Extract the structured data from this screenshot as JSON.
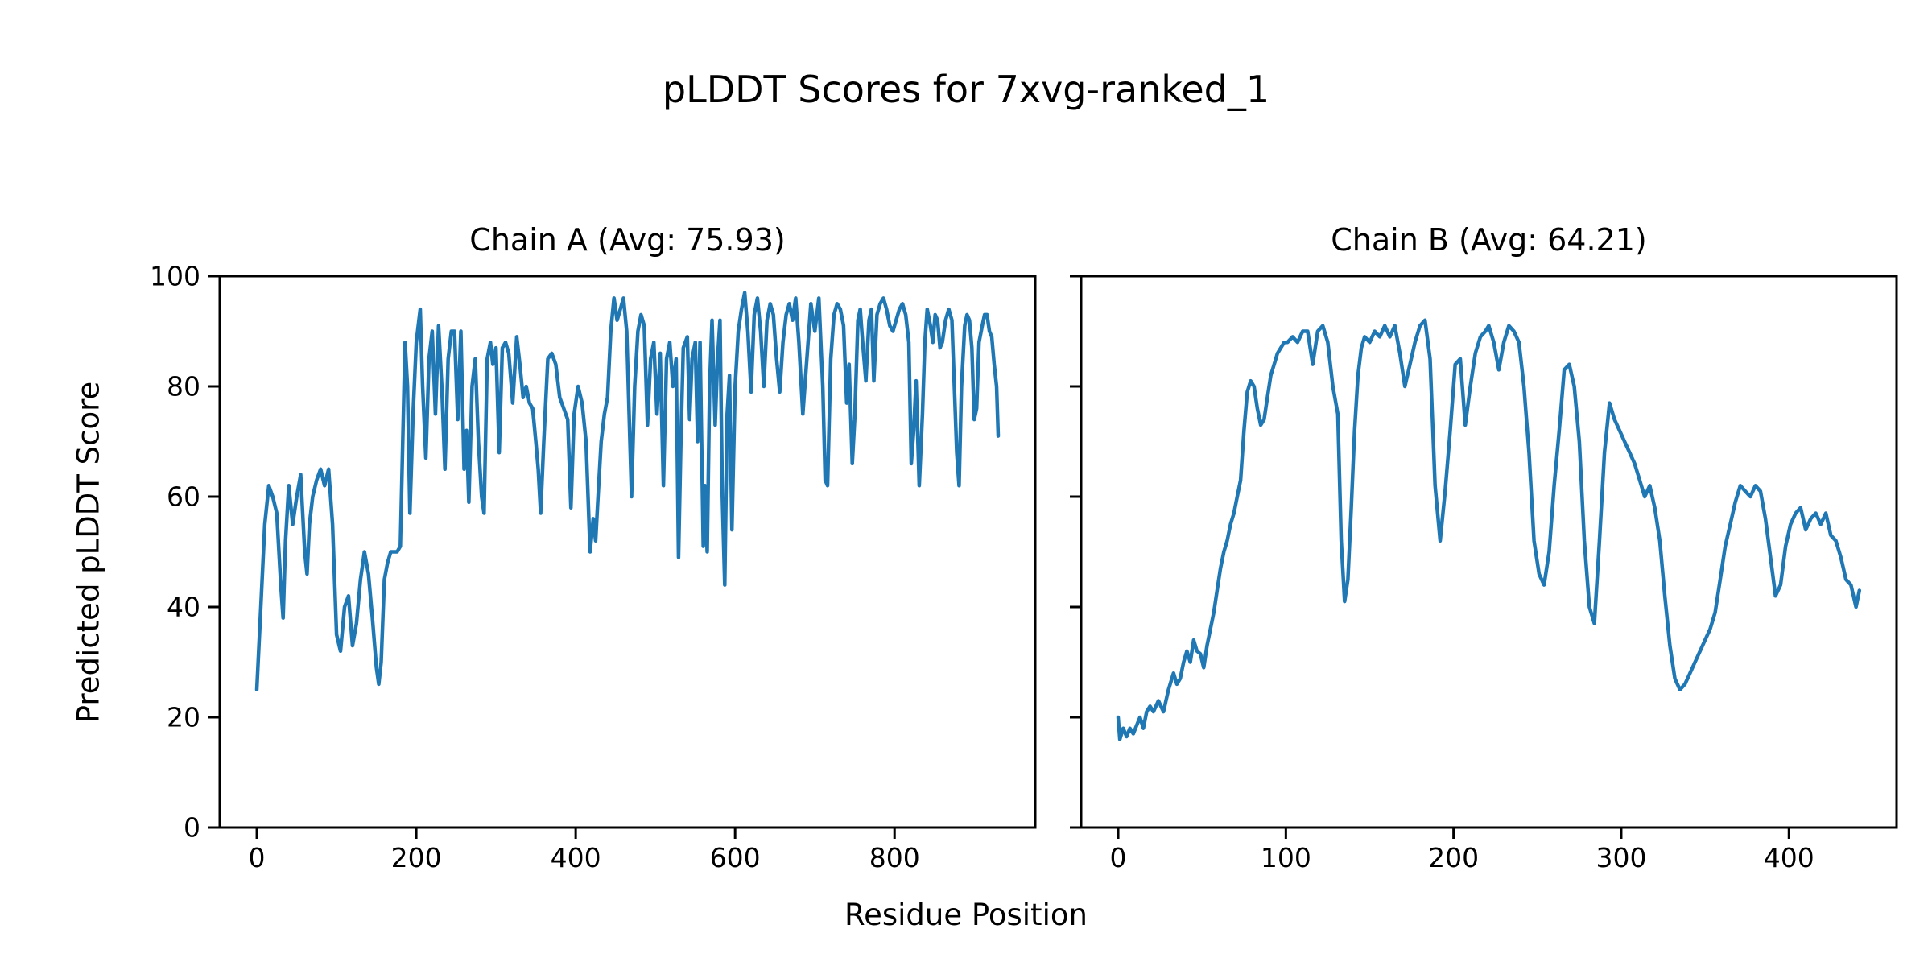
{
  "figure": {
    "suptitle": "pLDDT Scores for 7xvg-ranked_1",
    "xlabel": "Residue Position",
    "ylabel": "Predicted pLDDT Score",
    "line_color": "#1f77b4",
    "axis_color": "#000000",
    "background_color": "#ffffff"
  },
  "chart_data": [
    {
      "type": "line",
      "title": "Chain A (Avg: 75.93)",
      "average_plddt": 75.93,
      "xticks": [
        0,
        200,
        400,
        600,
        800
      ],
      "yticks": [
        0,
        20,
        40,
        60,
        80,
        100
      ],
      "show_ytick_labels": true,
      "xlim": [
        -46.5,
        976.5
      ],
      "ylim": [
        0,
        100
      ],
      "grid": false,
      "legend": false,
      "x": [
        0,
        5,
        10,
        15,
        20,
        25,
        30,
        33,
        36,
        40,
        45,
        50,
        55,
        60,
        63,
        66,
        70,
        75,
        80,
        85,
        90,
        95,
        100,
        105,
        110,
        115,
        120,
        125,
        130,
        135,
        140,
        145,
        150,
        153,
        156,
        160,
        164,
        168,
        172,
        176,
        180,
        183,
        186,
        189,
        192,
        196,
        200,
        205,
        208,
        212,
        216,
        220,
        224,
        228,
        232,
        236,
        240,
        244,
        248,
        252,
        256,
        260,
        263,
        266,
        270,
        274,
        278,
        282,
        285,
        289,
        293,
        296,
        300,
        304,
        308,
        312,
        316,
        321,
        326,
        330,
        334,
        338,
        342,
        346,
        350,
        353,
        356,
        360,
        365,
        370,
        375,
        380,
        385,
        390,
        394,
        398,
        403,
        408,
        413,
        418,
        422,
        425,
        428,
        432,
        436,
        440,
        444,
        448,
        452,
        456,
        460,
        464,
        467,
        470,
        474,
        478,
        482,
        486,
        490,
        494,
        498,
        502,
        506,
        510,
        514,
        518,
        522,
        526,
        529,
        532,
        535,
        540,
        543,
        546,
        550,
        553,
        556,
        560,
        562,
        565,
        568,
        571,
        575,
        578,
        581,
        584,
        587,
        590,
        593,
        596,
        600,
        604,
        608,
        612,
        616,
        620,
        624,
        628,
        632,
        636,
        640,
        644,
        648,
        652,
        656,
        660,
        664,
        668,
        672,
        676,
        680,
        685,
        690,
        695,
        700,
        705,
        710,
        713,
        716,
        720,
        724,
        728,
        732,
        736,
        740,
        743,
        747,
        750,
        754,
        757,
        760,
        764,
        768,
        771,
        774,
        778,
        782,
        786,
        790,
        794,
        798,
        802,
        806,
        810,
        814,
        818,
        821,
        824,
        827,
        831,
        835,
        838,
        841,
        845,
        848,
        851,
        854,
        857,
        860,
        864,
        868,
        872,
        875,
        878,
        881,
        884,
        888,
        891,
        894,
        897,
        900,
        903,
        906,
        910,
        913,
        916,
        919,
        922,
        925,
        928,
        930
      ],
      "y": [
        25,
        40,
        55,
        62,
        60,
        57,
        44,
        38,
        52,
        62,
        55,
        60,
        64,
        50,
        46,
        55,
        60,
        63,
        65,
        62,
        65,
        55,
        35,
        32,
        40,
        42,
        33,
        37,
        45,
        50,
        46,
        38,
        29,
        26,
        30,
        45,
        48,
        50,
        50,
        50,
        51,
        70,
        88,
        80,
        57,
        75,
        88,
        94,
        80,
        67,
        85,
        90,
        75,
        91,
        80,
        65,
        85,
        90,
        90,
        74,
        90,
        65,
        72,
        59,
        80,
        85,
        70,
        60,
        57,
        85,
        88,
        84,
        87,
        68,
        87,
        88,
        86,
        77,
        89,
        84,
        78,
        80,
        77,
        76,
        70,
        65,
        57,
        70,
        85,
        86,
        84,
        78,
        76,
        74,
        58,
        75,
        80,
        77,
        70,
        50,
        56,
        52,
        60,
        70,
        75,
        78,
        90,
        96,
        92,
        94,
        96,
        90,
        75,
        60,
        80,
        90,
        93,
        91,
        73,
        85,
        88,
        75,
        86,
        62,
        85,
        88,
        80,
        85,
        49,
        70,
        87,
        89,
        74,
        85,
        88,
        70,
        88,
        51,
        62,
        50,
        80,
        92,
        73,
        85,
        92,
        60,
        44,
        75,
        82,
        54,
        80,
        90,
        94,
        97,
        90,
        79,
        93,
        96,
        90,
        80,
        92,
        95,
        93,
        85,
        79,
        88,
        93,
        95,
        92,
        96,
        88,
        75,
        85,
        95,
        90,
        96,
        80,
        63,
        62,
        85,
        93,
        95,
        94,
        91,
        77,
        84,
        66,
        74,
        92,
        94,
        88,
        81,
        92,
        94,
        81,
        93,
        95,
        96,
        94,
        91,
        90,
        92,
        94,
        95,
        93,
        88,
        66,
        72,
        81,
        62,
        75,
        88,
        94,
        91,
        88,
        93,
        92,
        87,
        88,
        92,
        94,
        92,
        80,
        68,
        62,
        80,
        91,
        93,
        92,
        87,
        74,
        76,
        88,
        91,
        93,
        93,
        90,
        89,
        84,
        80,
        71
      ]
    },
    {
      "type": "line",
      "title": "Chain B (Avg: 64.21)",
      "average_plddt": 64.21,
      "xticks": [
        0,
        100,
        200,
        300,
        400
      ],
      "yticks": [
        0,
        20,
        40,
        60,
        80,
        100
      ],
      "show_ytick_labels": false,
      "xlim": [
        -22.1,
        464.2
      ],
      "ylim": [
        0,
        100
      ],
      "grid": false,
      "legend": false,
      "x": [
        0,
        1,
        3,
        5,
        7,
        9,
        11,
        13,
        15,
        17,
        19,
        21,
        24,
        27,
        30,
        33,
        35,
        37,
        39,
        41,
        43,
        45,
        47,
        49,
        51,
        53,
        55,
        57,
        59,
        61,
        63,
        65,
        67,
        69,
        71,
        73,
        75,
        77,
        79,
        81,
        83,
        85,
        87,
        89,
        91,
        93,
        95,
        97,
        99,
        101,
        104,
        107,
        110,
        113,
        116,
        119,
        122,
        125,
        128,
        131,
        133,
        135,
        137,
        139,
        141,
        143,
        145,
        147,
        150,
        153,
        156,
        159,
        162,
        165,
        168,
        171,
        174,
        177,
        180,
        183,
        186,
        189,
        192,
        195,
        198,
        201,
        204,
        207,
        210,
        213,
        216,
        219,
        221,
        224,
        227,
        230,
        233,
        236,
        239,
        242,
        245,
        248,
        251,
        254,
        257,
        260,
        263,
        266,
        269,
        272,
        275,
        278,
        281,
        284,
        287,
        290,
        293,
        296,
        299,
        302,
        305,
        308,
        311,
        314,
        317,
        320,
        323,
        326,
        329,
        332,
        335,
        338,
        341,
        344,
        347,
        350,
        353,
        356,
        359,
        362,
        365,
        368,
        371,
        374,
        377,
        380,
        383,
        386,
        389,
        392,
        395,
        398,
        401,
        404,
        407,
        410,
        413,
        416,
        419,
        422,
        425,
        428,
        431,
        434,
        437,
        440,
        442
      ],
      "y": [
        20,
        16,
        18,
        16.5,
        18,
        17,
        18.5,
        20,
        18,
        21,
        22,
        21,
        23,
        21,
        25,
        28,
        26,
        27,
        30,
        32,
        30,
        34,
        32,
        31.5,
        29,
        33,
        36,
        39,
        43,
        47,
        50,
        52,
        55,
        57,
        60,
        63,
        72,
        79,
        81,
        80,
        76,
        73,
        74,
        78,
        82,
        84,
        86,
        87,
        88,
        88,
        89,
        88,
        90,
        90,
        84,
        90,
        91,
        88,
        80,
        75,
        52,
        41,
        45,
        58,
        72,
        82,
        87,
        89,
        88,
        90,
        89,
        91,
        89,
        91,
        86,
        80,
        84,
        88,
        91,
        92,
        85,
        62,
        52,
        61,
        72,
        84,
        85,
        73,
        80,
        86,
        89,
        90,
        91,
        88,
        83,
        88,
        91,
        90,
        88,
        80,
        68,
        52,
        46,
        44,
        50,
        62,
        72,
        83,
        84,
        80,
        70,
        52,
        40,
        37,
        52,
        68,
        77,
        74,
        72,
        70,
        68,
        66,
        63,
        60,
        62,
        58,
        52,
        42,
        33,
        27,
        25,
        26,
        28,
        30,
        32,
        34,
        36,
        39,
        45,
        51,
        55,
        59,
        62,
        61,
        60,
        62,
        61,
        56,
        49,
        42,
        44,
        51,
        55,
        57,
        58,
        54,
        56,
        57,
        55,
        57,
        53,
        52,
        49,
        45,
        44,
        40,
        43
      ]
    }
  ]
}
